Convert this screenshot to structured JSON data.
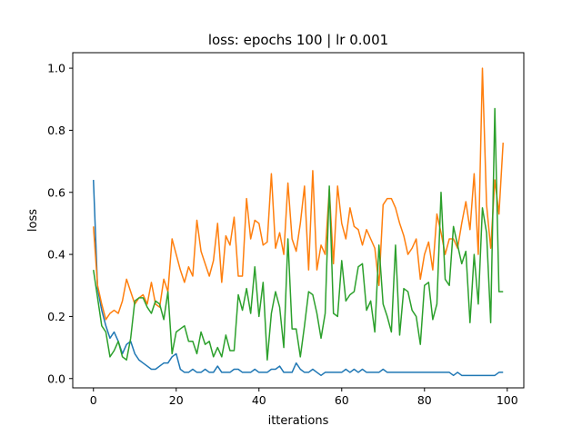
{
  "chart_data": {
    "type": "line",
    "title": "loss: epochs 100 | lr 0.001",
    "xlabel": "itterations",
    "ylabel": "loss",
    "xlim": [
      -5,
      104
    ],
    "ylim": [
      -0.03,
      1.05
    ],
    "xticks": [
      0,
      20,
      40,
      60,
      80,
      100
    ],
    "xtick_labels": [
      "0",
      "20",
      "40",
      "60",
      "80",
      "100"
    ],
    "yticks": [
      0.0,
      0.2,
      0.4,
      0.6,
      0.8,
      1.0
    ],
    "ytick_labels": [
      "0.0",
      "0.2",
      "0.4",
      "0.6",
      "0.8",
      "1.0"
    ],
    "grid": false,
    "legend": "none",
    "series": [
      {
        "color": "#1f77b4",
        "values": [
          0.64,
          0.29,
          0.22,
          0.17,
          0.13,
          0.15,
          0.12,
          0.08,
          0.11,
          0.12,
          0.08,
          0.06,
          0.05,
          0.04,
          0.03,
          0.03,
          0.04,
          0.05,
          0.05,
          0.07,
          0.08,
          0.03,
          0.02,
          0.02,
          0.03,
          0.02,
          0.02,
          0.03,
          0.02,
          0.02,
          0.04,
          0.02,
          0.02,
          0.02,
          0.03,
          0.03,
          0.02,
          0.02,
          0.02,
          0.03,
          0.02,
          0.02,
          0.02,
          0.03,
          0.03,
          0.04,
          0.02,
          0.02,
          0.02,
          0.05,
          0.03,
          0.02,
          0.02,
          0.03,
          0.02,
          0.01,
          0.02,
          0.02,
          0.02,
          0.02,
          0.02,
          0.03,
          0.02,
          0.03,
          0.02,
          0.03,
          0.02,
          0.02,
          0.02,
          0.02,
          0.03,
          0.02,
          0.02,
          0.02,
          0.02,
          0.02,
          0.02,
          0.02,
          0.02,
          0.02,
          0.02,
          0.02,
          0.02,
          0.02,
          0.02,
          0.02,
          0.02,
          0.01,
          0.02,
          0.01,
          0.01,
          0.01,
          0.01,
          0.01,
          0.01,
          0.01,
          0.01,
          0.01,
          0.02,
          0.02
        ]
      },
      {
        "color": "#ff7f0e",
        "values": [
          0.49,
          0.3,
          0.24,
          0.19,
          0.21,
          0.22,
          0.21,
          0.25,
          0.32,
          0.28,
          0.24,
          0.26,
          0.27,
          0.24,
          0.31,
          0.24,
          0.23,
          0.32,
          0.28,
          0.45,
          0.4,
          0.35,
          0.31,
          0.36,
          0.33,
          0.51,
          0.41,
          0.37,
          0.33,
          0.38,
          0.5,
          0.31,
          0.46,
          0.43,
          0.52,
          0.33,
          0.33,
          0.58,
          0.45,
          0.51,
          0.5,
          0.43,
          0.44,
          0.66,
          0.42,
          0.47,
          0.4,
          0.63,
          0.45,
          0.41,
          0.5,
          0.62,
          0.35,
          0.67,
          0.35,
          0.43,
          0.4,
          0.61,
          0.37,
          0.62,
          0.5,
          0.45,
          0.55,
          0.49,
          0.48,
          0.43,
          0.48,
          0.45,
          0.42,
          0.3,
          0.56,
          0.58,
          0.58,
          0.55,
          0.5,
          0.46,
          0.4,
          0.42,
          0.45,
          0.32,
          0.4,
          0.44,
          0.35,
          0.53,
          0.47,
          0.4,
          0.45,
          0.45,
          0.42,
          0.5,
          0.57,
          0.48,
          0.66,
          0.4,
          1.0,
          0.56,
          0.42,
          0.64,
          0.53,
          0.76
        ]
      },
      {
        "color": "#2ca02c",
        "values": [
          0.35,
          0.26,
          0.17,
          0.15,
          0.07,
          0.09,
          0.12,
          0.07,
          0.06,
          0.13,
          0.25,
          0.26,
          0.26,
          0.23,
          0.21,
          0.25,
          0.24,
          0.19,
          0.28,
          0.08,
          0.15,
          0.16,
          0.17,
          0.12,
          0.12,
          0.08,
          0.15,
          0.11,
          0.12,
          0.07,
          0.1,
          0.07,
          0.14,
          0.09,
          0.09,
          0.27,
          0.22,
          0.29,
          0.21,
          0.36,
          0.2,
          0.31,
          0.06,
          0.21,
          0.28,
          0.23,
          0.1,
          0.45,
          0.16,
          0.16,
          0.07,
          0.17,
          0.28,
          0.27,
          0.21,
          0.13,
          0.21,
          0.62,
          0.21,
          0.2,
          0.38,
          0.25,
          0.27,
          0.28,
          0.36,
          0.37,
          0.22,
          0.25,
          0.15,
          0.43,
          0.24,
          0.2,
          0.15,
          0.43,
          0.14,
          0.29,
          0.28,
          0.22,
          0.2,
          0.11,
          0.3,
          0.31,
          0.19,
          0.24,
          0.6,
          0.32,
          0.3,
          0.49,
          0.43,
          0.37,
          0.41,
          0.18,
          0.4,
          0.24,
          0.55,
          0.47,
          0.18,
          0.87,
          0.28,
          0.28
        ]
      }
    ]
  }
}
